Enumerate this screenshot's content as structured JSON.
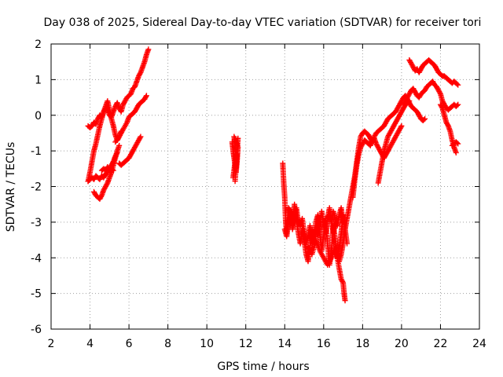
{
  "chart_data": {
    "type": "scatter",
    "title": "Day 038 of 2025, Sidereal Day-to-day VTEC variation (SDTVAR) for receiver tori",
    "xlabel": "GPS time / hours",
    "ylabel": "SDTVAR / TECUs",
    "xlim": [
      2,
      24
    ],
    "ylim": [
      -6,
      2
    ],
    "xticks": [
      "2",
      "4",
      "6",
      "8",
      "10",
      "12",
      "14",
      "16",
      "18",
      "20",
      "22",
      "24"
    ],
    "yticks": [
      "-6",
      "-5",
      "-4",
      "-3",
      "-2",
      "-1",
      "0",
      "1",
      "2"
    ],
    "grid": true,
    "marker": "plus",
    "color": "#ff0000",
    "series": [
      {
        "x": [
          3.9,
          4.0,
          4.1,
          4.2,
          4.3,
          4.4,
          4.5,
          4.6,
          4.7,
          4.8,
          4.9,
          5.0,
          5.1,
          5.2,
          5.3,
          5.4,
          5.5,
          5.6,
          5.7,
          5.8,
          5.9,
          6.0,
          6.1,
          6.2,
          6.3,
          6.4,
          6.5,
          6.6,
          6.7,
          6.8,
          6.9,
          7.0
        ],
        "y": [
          -1.85,
          -1.6,
          -1.3,
          -1.0,
          -0.8,
          -0.55,
          -0.3,
          -0.1,
          0.1,
          0.2,
          0.15,
          0.0,
          -0.05,
          0.1,
          0.25,
          0.35,
          0.2,
          0.1,
          0.3,
          0.4,
          0.5,
          0.55,
          0.6,
          0.75,
          0.8,
          0.95,
          1.1,
          1.2,
          1.35,
          1.5,
          1.7,
          1.85
        ]
      },
      {
        "x": [
          3.9,
          4.0,
          4.1,
          4.2,
          4.3,
          4.4,
          4.5,
          4.6,
          4.7,
          4.8,
          4.9,
          5.0,
          5.1,
          5.2,
          5.3,
          5.4,
          5.5,
          5.6
        ],
        "y": [
          -0.3,
          -0.35,
          -0.3,
          -0.2,
          -0.25,
          -0.1,
          0.0,
          -0.05,
          0.1,
          0.25,
          0.4,
          0.15,
          -0.1,
          -0.3,
          -0.55,
          -0.7,
          -0.6,
          -0.45
        ]
      },
      {
        "x": [
          3.9,
          4.0,
          4.1,
          4.2,
          4.3,
          4.4,
          4.5,
          4.6,
          4.7,
          4.8,
          4.9,
          5.0,
          5.1,
          5.2,
          5.3,
          5.4
        ],
        "y": [
          -1.85,
          -1.8,
          -1.75,
          -1.8,
          -1.7,
          -1.75,
          -1.8,
          -1.7,
          -1.75,
          -1.65,
          -1.6,
          -1.5,
          -1.4,
          -1.3,
          -1.15,
          -1.05
        ]
      },
      {
        "x": [
          4.2,
          4.3,
          4.4,
          4.5,
          4.6,
          4.7,
          4.8,
          4.9,
          5.0,
          5.1,
          5.2,
          5.3,
          5.4,
          5.5
        ],
        "y": [
          -2.15,
          -2.25,
          -2.3,
          -2.35,
          -2.25,
          -2.1,
          -2.0,
          -1.9,
          -1.75,
          -1.6,
          -1.4,
          -1.2,
          -1.0,
          -0.85
        ]
      },
      {
        "x": [
          5.3,
          5.5,
          5.7,
          5.9,
          6.0,
          6.1,
          6.2,
          6.3,
          6.4,
          6.5,
          6.6,
          6.7,
          6.8,
          6.9
        ],
        "y": [
          -0.75,
          -0.6,
          -0.4,
          -0.2,
          -0.05,
          0.0,
          0.05,
          0.1,
          0.2,
          0.3,
          0.35,
          0.4,
          0.45,
          0.55
        ]
      },
      {
        "x": [
          5.5,
          5.6,
          5.7,
          5.8,
          5.9,
          6.0,
          6.1,
          6.2,
          6.3,
          6.4,
          6.5,
          6.6
        ],
        "y": [
          -1.35,
          -1.4,
          -1.35,
          -1.3,
          -1.25,
          -1.2,
          -1.1,
          -1.0,
          -0.9,
          -0.8,
          -0.7,
          -0.6
        ]
      },
      {
        "x": [
          4.6,
          4.7,
          4.8,
          4.9,
          5.0,
          5.1,
          5.2
        ],
        "y": [
          -1.55,
          -1.5,
          -1.55,
          -1.45,
          -1.55,
          -1.5,
          -1.55
        ]
      },
      {
        "x": [
          11.3,
          11.35,
          11.4,
          11.45,
          11.5,
          11.55,
          11.6,
          11.4,
          11.45,
          11.5,
          11.55,
          11.35,
          11.6,
          11.45
        ],
        "y": [
          -0.75,
          -1.0,
          -1.2,
          -1.4,
          -1.6,
          -1.3,
          -0.9,
          -0.6,
          -0.8,
          -1.5,
          -1.1,
          -1.75,
          -0.65,
          -1.85
        ]
      },
      {
        "x": [
          13.9,
          13.95,
          14.0,
          14.05,
          14.1,
          14.15,
          14.2,
          14.3,
          14.4,
          14.5,
          14.6,
          14.7,
          14.8,
          14.9,
          15.0,
          15.1,
          15.2,
          15.3,
          15.4,
          15.5,
          15.6,
          15.7,
          15.8,
          15.9,
          16.0,
          16.1,
          16.2,
          16.3,
          16.4,
          16.5,
          16.6,
          16.7,
          16.8,
          16.9,
          17.0,
          17.1,
          17.2
        ],
        "y": [
          -1.35,
          -1.9,
          -2.3,
          -3.0,
          -3.3,
          -2.9,
          -2.6,
          -2.7,
          -3.1,
          -2.5,
          -2.9,
          -3.3,
          -3.6,
          -3.2,
          -3.5,
          -3.9,
          -4.1,
          -3.7,
          -3.2,
          -3.6,
          -3.0,
          -2.8,
          -3.3,
          -3.8,
          -3.4,
          -2.9,
          -3.6,
          -4.2,
          -3.8,
          -3.1,
          -3.5,
          -4.0,
          -3.7,
          -3.3,
          -2.8,
          -3.2,
          -3.6
        ]
      },
      {
        "x": [
          14.0,
          14.1,
          14.2,
          14.3,
          14.4,
          14.5,
          14.6,
          14.7,
          14.8,
          14.9,
          15.0,
          15.1,
          15.2,
          15.3,
          15.4,
          15.5,
          15.6,
          15.7,
          15.8,
          15.9,
          16.0,
          16.1,
          16.2,
          16.3,
          16.4,
          16.5,
          16.6
        ],
        "y": [
          -3.2,
          -3.4,
          -3.0,
          -2.8,
          -3.2,
          -2.9,
          -2.6,
          -3.0,
          -3.1,
          -2.9,
          -3.3,
          -3.6,
          -3.4,
          -3.1,
          -3.6,
          -3.3,
          -3.1,
          -3.4,
          -3.0,
          -2.7,
          -3.1,
          -3.3,
          -2.9,
          -2.6,
          -3.0,
          -3.3,
          -3.0
        ]
      },
      {
        "x": [
          15.2,
          15.4,
          15.6,
          15.8,
          16.0,
          16.2,
          16.4,
          16.6,
          16.8,
          16.9,
          17.0,
          17.05,
          17.1
        ],
        "y": [
          -3.7,
          -3.9,
          -3.5,
          -3.8,
          -4.0,
          -4.2,
          -4.0,
          -3.7,
          -4.3,
          -4.6,
          -4.7,
          -5.0,
          -5.2
        ]
      },
      {
        "x": [
          16.2,
          16.3,
          16.4,
          16.5,
          16.6,
          16.7,
          16.8,
          16.9,
          17.0
        ],
        "y": [
          -2.9,
          -2.8,
          -3.0,
          -2.7,
          -2.9,
          -3.1,
          -2.8,
          -2.6,
          -3.0
        ]
      },
      {
        "x": [
          16.8,
          16.9,
          17.0,
          17.1,
          17.2,
          17.3,
          17.4,
          17.5,
          17.6,
          17.7,
          17.8,
          17.9,
          18.0,
          18.1,
          18.2,
          18.3,
          18.4,
          18.5,
          18.6,
          18.7,
          18.8,
          18.9,
          19.0,
          19.1,
          19.2,
          19.3,
          19.4,
          19.5,
          19.6,
          19.7,
          19.8,
          19.9,
          20.0,
          20.1,
          20.2,
          20.3,
          20.4,
          20.5,
          20.6,
          20.7,
          20.8,
          20.9,
          21.0,
          21.1,
          21.2
        ],
        "y": [
          -4.1,
          -3.9,
          -3.6,
          -3.2,
          -2.9,
          -2.6,
          -2.3,
          -2.0,
          -1.7,
          -1.3,
          -0.9,
          -0.6,
          -0.5,
          -0.45,
          -0.5,
          -0.55,
          -0.65,
          -0.75,
          -0.6,
          -0.5,
          -0.45,
          -0.4,
          -0.35,
          -0.3,
          -0.2,
          -0.1,
          -0.05,
          0.0,
          0.05,
          0.1,
          0.2,
          0.3,
          0.4,
          0.5,
          0.55,
          0.45,
          0.35,
          0.25,
          0.2,
          0.15,
          0.1,
          0.0,
          -0.1,
          -0.15,
          -0.1
        ]
      },
      {
        "x": [
          17.5,
          17.6,
          17.7,
          17.8,
          17.9,
          18.0,
          18.1,
          18.2,
          18.3,
          18.4,
          18.5,
          18.6,
          18.7,
          18.8,
          18.9,
          19.0,
          19.1,
          19.2,
          19.3,
          19.4,
          19.5,
          19.6,
          19.7,
          19.8,
          19.9,
          20.0
        ],
        "y": [
          -2.3,
          -1.8,
          -1.4,
          -1.1,
          -0.9,
          -0.8,
          -0.7,
          -0.75,
          -0.8,
          -0.85,
          -0.7,
          -0.65,
          -0.8,
          -0.9,
          -1.0,
          -1.1,
          -1.2,
          -1.1,
          -1.0,
          -0.9,
          -0.8,
          -0.7,
          -0.6,
          -0.5,
          -0.4,
          -0.3
        ]
      },
      {
        "x": [
          18.8,
          18.9,
          19.0,
          19.1,
          19.2,
          19.3,
          19.4,
          19.5,
          19.6,
          19.7,
          19.8,
          19.9,
          20.0,
          20.1,
          20.2,
          20.3,
          20.4
        ],
        "y": [
          -1.9,
          -1.6,
          -1.3,
          -1.0,
          -0.8,
          -0.6,
          -0.5,
          -0.4,
          -0.3,
          -0.2,
          -0.1,
          0.0,
          0.1,
          0.2,
          0.3,
          0.35,
          0.4
        ]
      },
      {
        "x": [
          20.4,
          20.5,
          20.6,
          20.7,
          20.8,
          20.9,
          21.0,
          21.1,
          21.2,
          21.3,
          21.4,
          21.5,
          21.6,
          21.7,
          21.8,
          21.9,
          22.0,
          22.1,
          22.2,
          22.3,
          22.4,
          22.5,
          22.6,
          22.7,
          22.8,
          22.9
        ],
        "y": [
          1.55,
          1.45,
          1.35,
          1.25,
          1.3,
          1.2,
          1.3,
          1.4,
          1.45,
          1.5,
          1.55,
          1.5,
          1.45,
          1.4,
          1.3,
          1.2,
          1.15,
          1.1,
          1.1,
          1.05,
          1.0,
          0.95,
          0.9,
          0.95,
          0.9,
          0.85
        ]
      },
      {
        "x": [
          20.1,
          20.2,
          20.3,
          20.4,
          20.5,
          20.6,
          20.7,
          20.8,
          20.9,
          21.0,
          21.1,
          21.2,
          21.3,
          21.4,
          21.5,
          21.6,
          21.7,
          21.8,
          21.9,
          22.0,
          22.1,
          22.2,
          22.3,
          22.4,
          22.5,
          22.6,
          22.7,
          22.8,
          22.9
        ],
        "y": [
          0.3,
          0.4,
          0.5,
          0.6,
          0.7,
          0.75,
          0.65,
          0.55,
          0.5,
          0.6,
          0.65,
          0.7,
          0.8,
          0.85,
          0.9,
          0.95,
          0.85,
          0.8,
          0.7,
          0.6,
          0.4,
          0.3,
          0.2,
          0.15,
          0.2,
          0.25,
          0.3,
          0.25,
          0.3
        ]
      },
      {
        "x": [
          22.0,
          22.1,
          22.2,
          22.3,
          22.4,
          22.5,
          22.6,
          22.7,
          22.8
        ],
        "y": [
          0.3,
          0.2,
          0.0,
          -0.2,
          -0.3,
          -0.45,
          -0.7,
          -0.9,
          -1.05
        ]
      },
      {
        "x": [
          22.6,
          22.7,
          22.8,
          22.9
        ],
        "y": [
          -0.85,
          -0.8,
          -0.75,
          -0.8
        ]
      }
    ]
  }
}
